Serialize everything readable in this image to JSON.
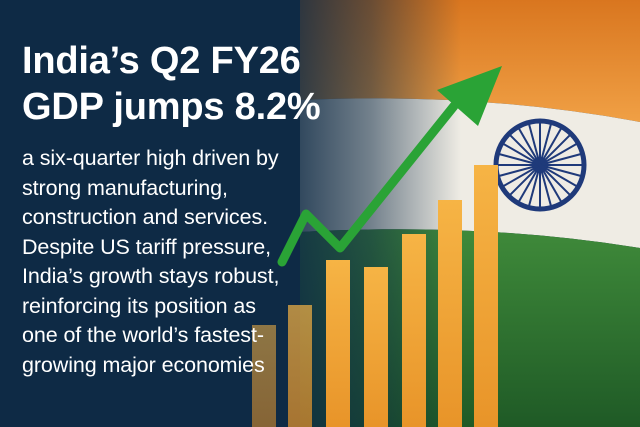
{
  "headline": {
    "lines": [
      "India’s Q2 FY26",
      "GDP jumps 8.2%"
    ]
  },
  "body": {
    "lines": [
      "a six-quarter high driven by",
      "strong manufacturing,",
      "construction and services.",
      "Despite US tariff pressure,",
      "India’s growth stays robust,",
      "reinforcing its position as",
      "one of the world’s fastest-",
      "growing major economies"
    ]
  },
  "graphic": {
    "flag": {
      "saffron": "#e8892b",
      "white": "#f2f0ea",
      "green": "#2f7a32",
      "chakra": "#1f3a7a"
    },
    "bar_color": "#f2a93b",
    "arrow_color": "#2aa336",
    "background_navy": "#0e2a45",
    "icons": [
      "ashoka-chakra-icon",
      "trend-arrow-icon"
    ]
  }
}
